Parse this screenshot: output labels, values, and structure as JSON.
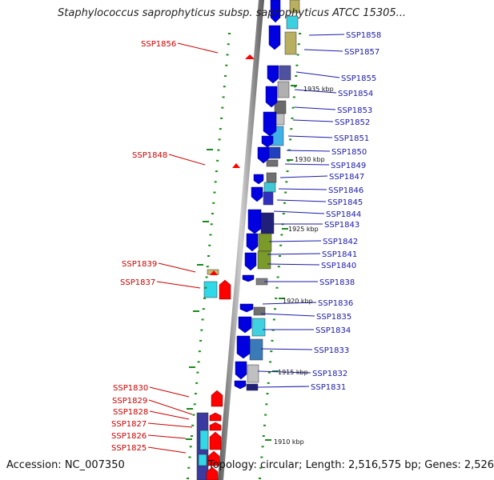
{
  "title": "Staphylococcus saprophyticus subsp. saprophyticus ATCC 15305...",
  "accession": "Accession: NC_007350",
  "summary": "Topology: circular; Length: 2,516,575 bp; Genes: 2,526",
  "colors": {
    "backbone": "#8a8a8a",
    "left_label": "#cc0000",
    "right_label": "#1a1aaa",
    "forward_gene": "#ff0000",
    "reverse_gene": "#0000e0",
    "tick": "#1a8a1a"
  },
  "kbp_labels": [
    {
      "text": "1935 kbp",
      "pos": 1935
    },
    {
      "text": "1930 kbp",
      "pos": 1930
    },
    {
      "text": "1925 kbp",
      "pos": 1925
    },
    {
      "text": "1920 kbp",
      "pos": 1920
    },
    {
      "text": "1915 kbp",
      "pos": 1915
    },
    {
      "text": "1910 kbp",
      "pos": 1910
    }
  ],
  "right_genes": [
    "SSP1858",
    "SSP1857",
    "SSP1855",
    "SSP1854",
    "SSP1853",
    "SSP1852",
    "SSP1851",
    "SSP1850",
    "SSP1849",
    "SSP1847",
    "SSP1846",
    "SSP1845",
    "SSP1844",
    "SSP1843",
    "SSP1842",
    "SSP1841",
    "SSP1840",
    "SSP1838",
    "SSP1836",
    "SSP1835",
    "SSP1834",
    "SSP1833",
    "SSP1832",
    "SSP1831"
  ],
  "left_genes": [
    "SSP1856",
    "SSP1848",
    "SSP1839",
    "SSP1837",
    "SSP1830",
    "SSP1829",
    "SSP1828",
    "SSP1827",
    "SSP1826",
    "SSP1825"
  ]
}
